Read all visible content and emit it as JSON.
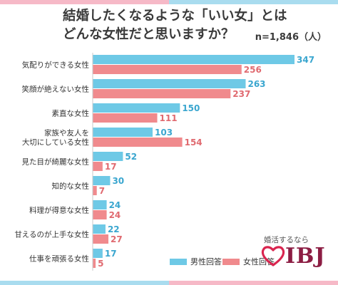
{
  "title": {
    "line1": "結婚したくなるような「いい女」とは",
    "line2": "どんな女性だと思いますか？"
  },
  "sample_label": "n=1,846（人）",
  "legend": {
    "male": "男性回答",
    "female": "女性回答"
  },
  "brand": {
    "tagline": "婚活するなら",
    "logo": "IBJ",
    "icon": "heart-icon"
  },
  "colors": {
    "male": "#6ec9e6",
    "female": "#f08a8d",
    "label_male": "#3aa6cf",
    "label_female": "#e06a70",
    "axis": "#c9c9c9"
  },
  "chart_data": {
    "type": "bar",
    "orientation": "horizontal",
    "title": "結婚したくなるような「いい女」とはどんな女性だと思いますか？",
    "categories": [
      [
        "気配りができる女性"
      ],
      [
        "笑顔が絶えない女性"
      ],
      [
        "素直な女性"
      ],
      [
        "家族や友人を",
        "大切にしている女性"
      ],
      [
        "見た目が綺麗な女性"
      ],
      [
        "知的な女性"
      ],
      [
        "料理が得意な女性"
      ],
      [
        "甘えるのが上手な女性"
      ],
      [
        "仕事を頑張る女性"
      ]
    ],
    "series": [
      {
        "name": "男性回答",
        "values": [
          347,
          263,
          150,
          103,
          52,
          30,
          24,
          22,
          17
        ]
      },
      {
        "name": "女性回答",
        "values": [
          256,
          237,
          111,
          154,
          17,
          7,
          24,
          27,
          5
        ]
      }
    ],
    "xlim": [
      0,
      347
    ],
    "legend_position": "bottom-right",
    "grid": false
  }
}
